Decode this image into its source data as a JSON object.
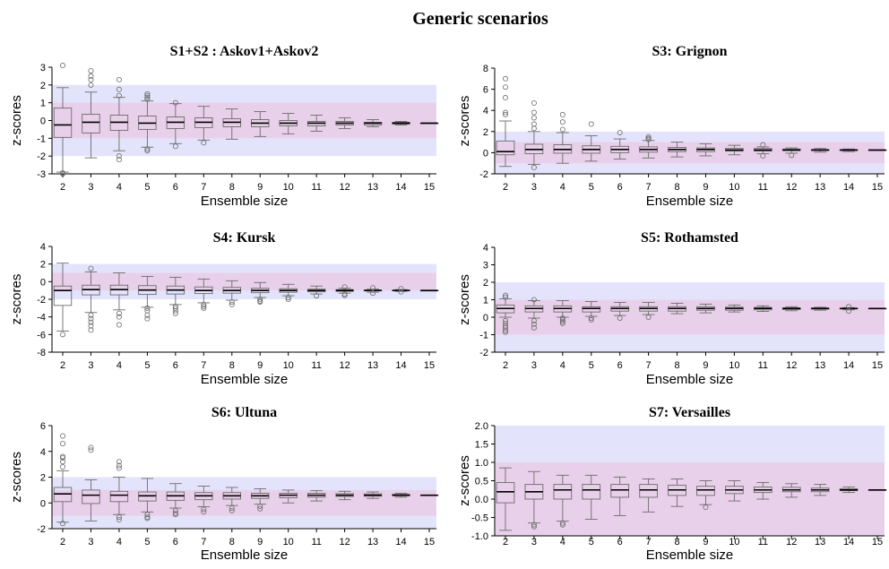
{
  "figure_title": "Generic scenarios",
  "colors": {
    "outer_band": "#e3e3fb",
    "inner_band": "#e9d0ea",
    "box": "#6b6b6b",
    "median": "#000000"
  },
  "chart_data": [
    {
      "type": "boxplot",
      "title": "S1+S2 : Askov1+Askov2",
      "xlabel": "Ensemble size",
      "ylabel": "z-scores",
      "ylim": [
        -3,
        3
      ],
      "yticks": [
        -3,
        -2,
        -1,
        0,
        1,
        2,
        3
      ],
      "bands": {
        "outer": [
          -2,
          2
        ],
        "inner": [
          -1,
          1
        ]
      },
      "categories": [
        "2",
        "3",
        "4",
        "5",
        "6",
        "7",
        "8",
        "9",
        "10",
        "11",
        "12",
        "13",
        "14",
        "15"
      ],
      "boxes": [
        {
          "wlo": -2.9,
          "q1": -0.95,
          "med": -0.25,
          "q3": 0.7,
          "whi": 1.85,
          "out": [
            -3.0,
            -2.95,
            3.1
          ]
        },
        {
          "wlo": -2.1,
          "q1": -0.7,
          "med": -0.1,
          "q3": 0.35,
          "whi": 1.6,
          "out": [
            2.0,
            2.3,
            2.5,
            2.8
          ]
        },
        {
          "wlo": -1.7,
          "q1": -0.55,
          "med": -0.1,
          "q3": 0.3,
          "whi": 1.3,
          "out": [
            -2.0,
            -2.2,
            1.4,
            1.75,
            2.3
          ]
        },
        {
          "wlo": -1.5,
          "q1": -0.5,
          "med": -0.15,
          "q3": 0.25,
          "whi": 1.1,
          "out": [
            -1.6,
            -1.7,
            1.2,
            1.3,
            1.4,
            1.5
          ]
        },
        {
          "wlo": -1.3,
          "q1": -0.45,
          "med": -0.1,
          "q3": 0.2,
          "whi": 0.95,
          "out": [
            -1.45,
            1.0
          ]
        },
        {
          "wlo": -1.1,
          "q1": -0.4,
          "med": -0.1,
          "q3": 0.15,
          "whi": 0.8,
          "out": [
            -1.25
          ]
        },
        {
          "wlo": -1.05,
          "q1": -0.35,
          "med": -0.1,
          "q3": 0.1,
          "whi": 0.65,
          "out": []
        },
        {
          "wlo": -0.9,
          "q1": -0.35,
          "med": -0.15,
          "q3": 0.05,
          "whi": 0.5,
          "out": []
        },
        {
          "wlo": -0.75,
          "q1": -0.3,
          "med": -0.15,
          "q3": 0.0,
          "whi": 0.4,
          "out": []
        },
        {
          "wlo": -0.6,
          "q1": -0.3,
          "med": -0.15,
          "q3": -0.05,
          "whi": 0.3,
          "out": []
        },
        {
          "wlo": -0.45,
          "q1": -0.25,
          "med": -0.15,
          "q3": -0.05,
          "whi": 0.15,
          "out": []
        },
        {
          "wlo": -0.35,
          "q1": -0.25,
          "med": -0.15,
          "q3": -0.1,
          "whi": 0.05,
          "out": []
        },
        {
          "wlo": -0.25,
          "q1": -0.2,
          "med": -0.15,
          "q3": -0.1,
          "whi": -0.05,
          "out": []
        },
        {
          "wlo": -0.15,
          "q1": -0.15,
          "med": -0.15,
          "q3": -0.15,
          "whi": -0.15,
          "out": []
        }
      ]
    },
    {
      "type": "boxplot",
      "title": "S3: Grignon",
      "xlabel": "Ensemble size",
      "ylabel": "z-scores",
      "ylim": [
        -2,
        8
      ],
      "yticks": [
        -2,
        0,
        2,
        4,
        6,
        8
      ],
      "bands": {
        "outer": [
          -2,
          2
        ],
        "inner": [
          -1,
          1
        ]
      },
      "categories": [
        "2",
        "3",
        "4",
        "5",
        "6",
        "7",
        "8",
        "9",
        "10",
        "11",
        "12",
        "13",
        "14",
        "15"
      ],
      "boxes": [
        {
          "wlo": -1.3,
          "q1": -0.2,
          "med": 0.1,
          "q3": 1.1,
          "whi": 3.0,
          "out": [
            3.6,
            3.8,
            5.2,
            6.2,
            7.0
          ]
        },
        {
          "wlo": -1.1,
          "q1": -0.1,
          "med": 0.3,
          "q3": 0.8,
          "whi": 2.0,
          "out": [
            -1.4,
            2.3,
            2.7,
            3.3,
            3.8,
            4.7
          ]
        },
        {
          "wlo": -1.0,
          "q1": -0.05,
          "med": 0.3,
          "q3": 0.75,
          "whi": 1.9,
          "out": [
            2.2,
            2.9,
            3.6
          ]
        },
        {
          "wlo": -0.8,
          "q1": -0.05,
          "med": 0.3,
          "q3": 0.65,
          "whi": 1.6,
          "out": [
            2.7
          ]
        },
        {
          "wlo": -0.6,
          "q1": 0.0,
          "med": 0.3,
          "q3": 0.6,
          "whi": 1.3,
          "out": [
            1.9
          ]
        },
        {
          "wlo": -0.5,
          "q1": 0.05,
          "med": 0.3,
          "q3": 0.55,
          "whi": 1.15,
          "out": [
            1.25,
            1.35,
            1.5
          ]
        },
        {
          "wlo": -0.4,
          "q1": 0.1,
          "med": 0.3,
          "q3": 0.5,
          "whi": 1.0,
          "out": []
        },
        {
          "wlo": -0.3,
          "q1": 0.1,
          "med": 0.3,
          "q3": 0.45,
          "whi": 0.85,
          "out": []
        },
        {
          "wlo": -0.2,
          "q1": 0.15,
          "med": 0.25,
          "q3": 0.4,
          "whi": 0.7,
          "out": []
        },
        {
          "wlo": -0.1,
          "q1": 0.15,
          "med": 0.25,
          "q3": 0.4,
          "whi": 0.55,
          "out": [
            -0.3,
            0.75
          ]
        },
        {
          "wlo": -0.05,
          "q1": 0.2,
          "med": 0.25,
          "q3": 0.35,
          "whi": 0.45,
          "out": [
            -0.25
          ]
        },
        {
          "wlo": 0.05,
          "q1": 0.2,
          "med": 0.25,
          "q3": 0.3,
          "whi": 0.4,
          "out": []
        },
        {
          "wlo": 0.1,
          "q1": 0.2,
          "med": 0.25,
          "q3": 0.28,
          "whi": 0.35,
          "out": []
        },
        {
          "wlo": 0.25,
          "q1": 0.25,
          "med": 0.25,
          "q3": 0.25,
          "whi": 0.25,
          "out": []
        }
      ]
    },
    {
      "type": "boxplot",
      "title": "S4: Kursk",
      "xlabel": "Ensemble size",
      "ylabel": "z-scores",
      "ylim": [
        -8,
        4
      ],
      "yticks": [
        -8,
        -6,
        -4,
        -2,
        0,
        2,
        4
      ],
      "bands": {
        "outer": [
          -2,
          2
        ],
        "inner": [
          -1,
          1
        ]
      },
      "categories": [
        "2",
        "3",
        "4",
        "5",
        "6",
        "7",
        "8",
        "9",
        "10",
        "11",
        "12",
        "13",
        "14",
        "15"
      ],
      "boxes": [
        {
          "wlo": -5.6,
          "q1": -2.7,
          "med": -1.0,
          "q3": -0.5,
          "whi": 2.1,
          "out": [
            -6.0
          ]
        },
        {
          "wlo": -3.5,
          "q1": -1.5,
          "med": -0.9,
          "q3": -0.4,
          "whi": 1.1,
          "out": [
            -3.8,
            -4.2,
            -4.6,
            -5.0,
            -5.5,
            1.5
          ]
        },
        {
          "wlo": -3.2,
          "q1": -1.5,
          "med": -0.9,
          "q3": -0.4,
          "whi": 1.0,
          "out": [
            -3.6,
            -4.0,
            -4.9
          ]
        },
        {
          "wlo": -2.9,
          "q1": -1.45,
          "med": -0.95,
          "q3": -0.45,
          "whi": 0.6,
          "out": [
            -3.0,
            -3.3,
            -3.8,
            -4.2
          ]
        },
        {
          "wlo": -2.6,
          "q1": -1.4,
          "med": -0.95,
          "q3": -0.5,
          "whi": 0.5,
          "out": [
            -2.8,
            -3.0,
            -3.3,
            -3.6
          ]
        },
        {
          "wlo": -2.4,
          "q1": -1.35,
          "med": -1.0,
          "q3": -0.6,
          "whi": 0.3,
          "out": [
            -2.6,
            -2.8,
            -3.0
          ]
        },
        {
          "wlo": -2.1,
          "q1": -1.3,
          "med": -1.0,
          "q3": -0.65,
          "whi": 0.1,
          "out": [
            -2.3,
            -2.6
          ]
        },
        {
          "wlo": -1.8,
          "q1": -1.25,
          "med": -1.0,
          "q3": -0.75,
          "whi": -0.1,
          "out": [
            -2.0,
            -2.2,
            -2.3
          ]
        },
        {
          "wlo": -1.6,
          "q1": -1.2,
          "med": -1.0,
          "q3": -0.8,
          "whi": -0.3,
          "out": [
            -1.8,
            -2.0
          ]
        },
        {
          "wlo": -1.4,
          "q1": -1.15,
          "med": -1.0,
          "q3": -0.85,
          "whi": -0.5,
          "out": [
            -1.6
          ]
        },
        {
          "wlo": -1.3,
          "q1": -1.1,
          "med": -1.0,
          "q3": -0.9,
          "whi": -0.75,
          "out": [
            -0.6,
            -1.4,
            -1.55
          ]
        },
        {
          "wlo": -1.2,
          "q1": -1.05,
          "med": -1.0,
          "q3": -0.95,
          "whi": -0.85,
          "out": [
            -0.7,
            -1.3
          ]
        },
        {
          "wlo": -1.1,
          "q1": -1.02,
          "med": -1.0,
          "q3": -0.97,
          "whi": -0.9,
          "out": [
            -0.8,
            -1.15
          ]
        },
        {
          "wlo": -1.0,
          "q1": -1.0,
          "med": -1.0,
          "q3": -1.0,
          "whi": -1.0,
          "out": []
        }
      ]
    },
    {
      "type": "boxplot",
      "title": "S5: Rothamsted",
      "xlabel": "Ensemble size",
      "ylabel": "z-scores",
      "ylim": [
        -2,
        4
      ],
      "yticks": [
        -2,
        -1,
        0,
        1,
        2,
        3,
        4
      ],
      "bands": {
        "outer": [
          -2,
          2
        ],
        "inner": [
          -1,
          1
        ]
      },
      "categories": [
        "2",
        "3",
        "4",
        "5",
        "6",
        "7",
        "8",
        "9",
        "10",
        "11",
        "12",
        "13",
        "14",
        "15"
      ],
      "boxes": [
        {
          "wlo": 0.0,
          "q1": 0.25,
          "med": 0.5,
          "q3": 0.7,
          "whi": 1.05,
          "out": [
            -0.2,
            -0.35,
            -0.5,
            -0.6,
            -0.75,
            -0.85,
            1.15,
            1.25
          ]
        },
        {
          "wlo": -0.05,
          "q1": 0.3,
          "med": 0.5,
          "q3": 0.65,
          "whi": 0.95,
          "out": [
            -0.2,
            -0.4,
            -0.6,
            1.0
          ]
        },
        {
          "wlo": 0.0,
          "q1": 0.3,
          "med": 0.5,
          "q3": 0.65,
          "whi": 0.95,
          "out": [
            -0.05,
            -0.15,
            -0.25,
            -0.35
          ]
        },
        {
          "wlo": 0.05,
          "q1": 0.3,
          "med": 0.5,
          "q3": 0.6,
          "whi": 0.9,
          "out": [
            -0.05,
            -0.15
          ]
        },
        {
          "wlo": 0.1,
          "q1": 0.35,
          "med": 0.5,
          "q3": 0.6,
          "whi": 0.85,
          "out": [
            -0.05
          ]
        },
        {
          "wlo": 0.15,
          "q1": 0.35,
          "med": 0.5,
          "q3": 0.6,
          "whi": 0.85,
          "out": [
            0.0
          ]
        },
        {
          "wlo": 0.2,
          "q1": 0.35,
          "med": 0.5,
          "q3": 0.6,
          "whi": 0.8,
          "out": []
        },
        {
          "wlo": 0.25,
          "q1": 0.4,
          "med": 0.5,
          "q3": 0.6,
          "whi": 0.75,
          "out": []
        },
        {
          "wlo": 0.3,
          "q1": 0.4,
          "med": 0.5,
          "q3": 0.58,
          "whi": 0.7,
          "out": []
        },
        {
          "wlo": 0.33,
          "q1": 0.42,
          "med": 0.5,
          "q3": 0.56,
          "whi": 0.65,
          "out": []
        },
        {
          "wlo": 0.37,
          "q1": 0.44,
          "med": 0.5,
          "q3": 0.54,
          "whi": 0.6,
          "out": []
        },
        {
          "wlo": 0.4,
          "q1": 0.46,
          "med": 0.5,
          "q3": 0.53,
          "whi": 0.57,
          "out": []
        },
        {
          "wlo": 0.42,
          "q1": 0.47,
          "med": 0.5,
          "q3": 0.52,
          "whi": 0.55,
          "out": [
            0.35,
            0.6
          ]
        },
        {
          "wlo": 0.5,
          "q1": 0.5,
          "med": 0.5,
          "q3": 0.5,
          "whi": 0.5,
          "out": []
        }
      ]
    },
    {
      "type": "boxplot",
      "title": "S6: Ultuna",
      "xlabel": "Ensemble size",
      "ylabel": "z-scores",
      "ylim": [
        -2,
        6
      ],
      "yticks": [
        -2,
        0,
        2,
        4,
        6
      ],
      "bands": {
        "outer": [
          -2,
          2
        ],
        "inner": [
          -1,
          1
        ]
      },
      "categories": [
        "2",
        "3",
        "4",
        "5",
        "6",
        "7",
        "8",
        "9",
        "10",
        "11",
        "12",
        "13",
        "14",
        "15"
      ],
      "boxes": [
        {
          "wlo": -1.5,
          "q1": 0.1,
          "med": 0.7,
          "q3": 1.2,
          "whi": 2.5,
          "out": [
            -1.6,
            2.8,
            3.2,
            3.5,
            3.6,
            4.6,
            5.2
          ]
        },
        {
          "wlo": -1.4,
          "q1": -0.05,
          "med": 0.6,
          "q3": 1.0,
          "whi": 1.8,
          "out": [
            4.1,
            4.3
          ]
        },
        {
          "wlo": -0.9,
          "q1": 0.1,
          "med": 0.6,
          "q3": 0.9,
          "whi": 2.0,
          "out": [
            -1.1,
            -1.3,
            2.7,
            2.9,
            3.2
          ]
        },
        {
          "wlo": -0.7,
          "q1": 0.15,
          "med": 0.55,
          "q3": 0.85,
          "whi": 1.9,
          "out": [
            -0.9,
            -1.1,
            -1.2
          ]
        },
        {
          "wlo": -0.4,
          "q1": 0.2,
          "med": 0.55,
          "q3": 0.85,
          "whi": 1.5,
          "out": [
            -0.6,
            -0.8,
            -0.9
          ]
        },
        {
          "wlo": -0.3,
          "q1": 0.25,
          "med": 0.55,
          "q3": 0.8,
          "whi": 1.3,
          "out": [
            -0.5,
            -0.7
          ]
        },
        {
          "wlo": -0.2,
          "q1": 0.3,
          "med": 0.55,
          "q3": 0.8,
          "whi": 1.2,
          "out": [
            -0.4,
            -0.6
          ]
        },
        {
          "wlo": -0.1,
          "q1": 0.35,
          "med": 0.55,
          "q3": 0.75,
          "whi": 1.1,
          "out": [
            -0.25,
            -0.45
          ]
        },
        {
          "wlo": 0.0,
          "q1": 0.4,
          "med": 0.6,
          "q3": 0.75,
          "whi": 1.0,
          "out": []
        },
        {
          "wlo": 0.15,
          "q1": 0.45,
          "med": 0.6,
          "q3": 0.75,
          "whi": 0.95,
          "out": []
        },
        {
          "wlo": 0.25,
          "q1": 0.5,
          "med": 0.6,
          "q3": 0.72,
          "whi": 0.9,
          "out": []
        },
        {
          "wlo": 0.35,
          "q1": 0.52,
          "med": 0.6,
          "q3": 0.7,
          "whi": 0.85,
          "out": []
        },
        {
          "wlo": 0.45,
          "q1": 0.55,
          "med": 0.6,
          "q3": 0.67,
          "whi": 0.75,
          "out": []
        },
        {
          "wlo": 0.6,
          "q1": 0.6,
          "med": 0.6,
          "q3": 0.6,
          "whi": 0.6,
          "out": []
        }
      ]
    },
    {
      "type": "boxplot",
      "title": "S7: Versailles",
      "xlabel": "Ensemble size",
      "ylabel": "z-scores",
      "ylim": [
        -1.0,
        2.0
      ],
      "yticks": [
        "-1.0",
        "-0.5",
        "0.0",
        "0.5",
        "1.0",
        "1.5",
        "2.0"
      ],
      "bands": {
        "outer": [
          -2,
          2
        ],
        "inner": [
          -1,
          1
        ]
      },
      "categories": [
        "2",
        "3",
        "4",
        "5",
        "6",
        "7",
        "8",
        "9",
        "10",
        "11",
        "12",
        "13",
        "14",
        "15"
      ],
      "boxes": [
        {
          "wlo": -0.85,
          "q1": -0.1,
          "med": 0.2,
          "q3": 0.45,
          "whi": 0.85,
          "out": []
        },
        {
          "wlo": -0.65,
          "q1": 0.0,
          "med": 0.2,
          "q3": 0.4,
          "whi": 0.75,
          "out": [
            -0.7,
            -0.75
          ]
        },
        {
          "wlo": -0.6,
          "q1": 0.0,
          "med": 0.25,
          "q3": 0.4,
          "whi": 0.65,
          "out": [
            -0.65,
            -0.7
          ]
        },
        {
          "wlo": -0.55,
          "q1": 0.0,
          "med": 0.25,
          "q3": 0.4,
          "whi": 0.65,
          "out": []
        },
        {
          "wlo": -0.45,
          "q1": 0.05,
          "med": 0.25,
          "q3": 0.4,
          "whi": 0.6,
          "out": []
        },
        {
          "wlo": -0.35,
          "q1": 0.05,
          "med": 0.25,
          "q3": 0.4,
          "whi": 0.55,
          "out": []
        },
        {
          "wlo": -0.2,
          "q1": 0.1,
          "med": 0.25,
          "q3": 0.38,
          "whi": 0.55,
          "out": []
        },
        {
          "wlo": -0.15,
          "q1": 0.1,
          "med": 0.25,
          "q3": 0.35,
          "whi": 0.5,
          "out": [
            -0.22
          ]
        },
        {
          "wlo": -0.05,
          "q1": 0.15,
          "med": 0.25,
          "q3": 0.35,
          "whi": 0.5,
          "out": []
        },
        {
          "wlo": 0.0,
          "q1": 0.18,
          "med": 0.25,
          "q3": 0.33,
          "whi": 0.45,
          "out": []
        },
        {
          "wlo": 0.05,
          "q1": 0.2,
          "med": 0.25,
          "q3": 0.32,
          "whi": 0.42,
          "out": []
        },
        {
          "wlo": 0.1,
          "q1": 0.2,
          "med": 0.25,
          "q3": 0.3,
          "whi": 0.4,
          "out": []
        },
        {
          "wlo": 0.18,
          "q1": 0.23,
          "med": 0.25,
          "q3": 0.28,
          "whi": 0.33,
          "out": []
        },
        {
          "wlo": 0.25,
          "q1": 0.25,
          "med": 0.25,
          "q3": 0.25,
          "whi": 0.25,
          "out": []
        }
      ]
    }
  ]
}
